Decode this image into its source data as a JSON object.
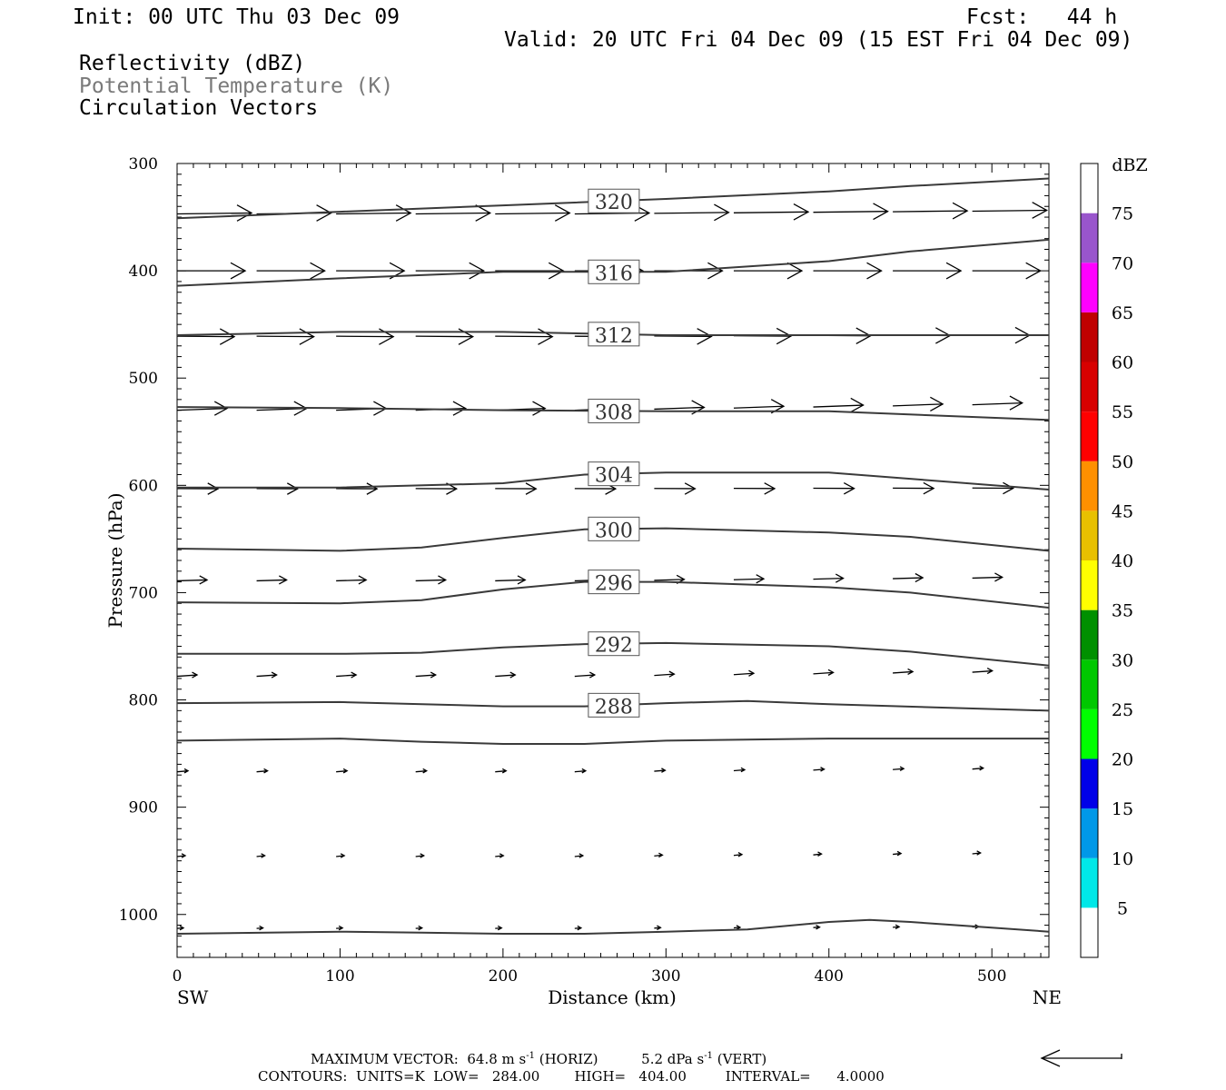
{
  "header": {
    "init": "Init: 00 UTC Thu 03 Dec 09",
    "fcst": "Fcst:   44 h",
    "valid": "Valid: 20 UTC Fri 04 Dec 09 (15 EST Fri 04 Dec 09)",
    "field1": "Reflectivity (dBZ)",
    "field2": "Potential Temperature (K)",
    "field3": "Circulation Vectors"
  },
  "footer": {
    "max_vector_prefix": "MAXIMUM VECTOR:  64.8 m s",
    "max_vector_mid": " (HORIZ)          5.2 dPa s",
    "max_vector_suffix": " (VERT)",
    "superscript": "-1",
    "contours": "CONTOURS:  UNITS=K  LOW=   284.00        HIGH=   404.00         INTERVAL=      4.0000"
  },
  "colorbar": {
    "unit": "dBZ",
    "levels": [
      "5",
      "10",
      "15",
      "20",
      "25",
      "30",
      "35",
      "40",
      "45",
      "50",
      "55",
      "60",
      "65",
      "70",
      "75"
    ],
    "colors": [
      "#ffffff",
      "#00e8e8",
      "#0098e8",
      "#0000e8",
      "#00ff00",
      "#00c800",
      "#009000",
      "#ffff00",
      "#e8c000",
      "#ff9000",
      "#ff0000",
      "#d80000",
      "#c00000",
      "#ff00ff",
      "#9955cc",
      "#ffffff"
    ]
  },
  "chart_data": {
    "type": "line",
    "title": "",
    "xlabel": "Distance (km)",
    "ylabel": "Pressure (hPa)",
    "xlim": [
      0,
      535
    ],
    "ylim": [
      1040,
      300
    ],
    "y_scale": "linear (inverted)",
    "x_ticks": [
      "0",
      "100",
      "200",
      "300",
      "400",
      "500"
    ],
    "y_ticks": [
      "300",
      "400",
      "500",
      "600",
      "700",
      "800",
      "900",
      "1000"
    ],
    "x_endpoint_labels": {
      "left": "SW",
      "right": "NE"
    },
    "isentropes": [
      {
        "name": "320",
        "x": [
          0,
          100,
          200,
          300,
          400,
          450,
          535
        ],
        "y": [
          351,
          345,
          339,
          333,
          326,
          321,
          314
        ]
      },
      {
        "name": "316",
        "x": [
          0,
          100,
          200,
          300,
          400,
          450,
          535
        ],
        "y": [
          414,
          407,
          401,
          401,
          391,
          382,
          371
        ]
      },
      {
        "name": "312",
        "x": [
          0,
          100,
          200,
          300,
          400,
          535
        ],
        "y": [
          460,
          457,
          457,
          460,
          460,
          460
        ]
      },
      {
        "name": "308",
        "x": [
          0,
          100,
          200,
          300,
          400,
          535
        ],
        "y": [
          527,
          528,
          530,
          531,
          531,
          539
        ]
      },
      {
        "name": "304",
        "x": [
          0,
          100,
          200,
          250,
          300,
          400,
          535
        ],
        "y": [
          602,
          602,
          598,
          590,
          588,
          588,
          604
        ]
      },
      {
        "name": "300",
        "x": [
          0,
          100,
          150,
          200,
          250,
          300,
          400,
          450,
          535
        ],
        "y": [
          659,
          661,
          658,
          649,
          641,
          640,
          644,
          648,
          661
        ]
      },
      {
        "name": "296",
        "x": [
          0,
          100,
          150,
          200,
          250,
          300,
          400,
          450,
          535
        ],
        "y": [
          709,
          710,
          707,
          697,
          690,
          690,
          695,
          700,
          714
        ]
      },
      {
        "name": "292",
        "x": [
          0,
          100,
          150,
          200,
          250,
          300,
          400,
          450,
          535
        ],
        "y": [
          757,
          757,
          756,
          751,
          748,
          747,
          750,
          755,
          768
        ]
      },
      {
        "name": "288",
        "x": [
          0,
          100,
          200,
          250,
          300,
          350,
          400,
          535
        ],
        "y": [
          803,
          802,
          806,
          806,
          803,
          801,
          804,
          810
        ]
      },
      {
        "name": "",
        "x": [
          0,
          100,
          150,
          200,
          250,
          300,
          400,
          535
        ],
        "y": [
          838,
          836,
          839,
          841,
          841,
          838,
          836,
          836
        ]
      },
      {
        "name": "",
        "x": [
          0,
          100,
          150,
          200,
          250,
          300,
          350,
          400,
          425,
          450,
          535
        ],
        "y": [
          1018,
          1016,
          1017,
          1018,
          1018,
          1016,
          1014,
          1007,
          1005,
          1007,
          1016
        ]
      }
    ],
    "contour_labels": [
      "320",
      "316",
      "312",
      "308",
      "304",
      "300",
      "296",
      "292",
      "288"
    ],
    "vectors_note": "circulation vectors, mostly westerly, decreasing with height from ~300 hPa to ~1000 hPa"
  }
}
